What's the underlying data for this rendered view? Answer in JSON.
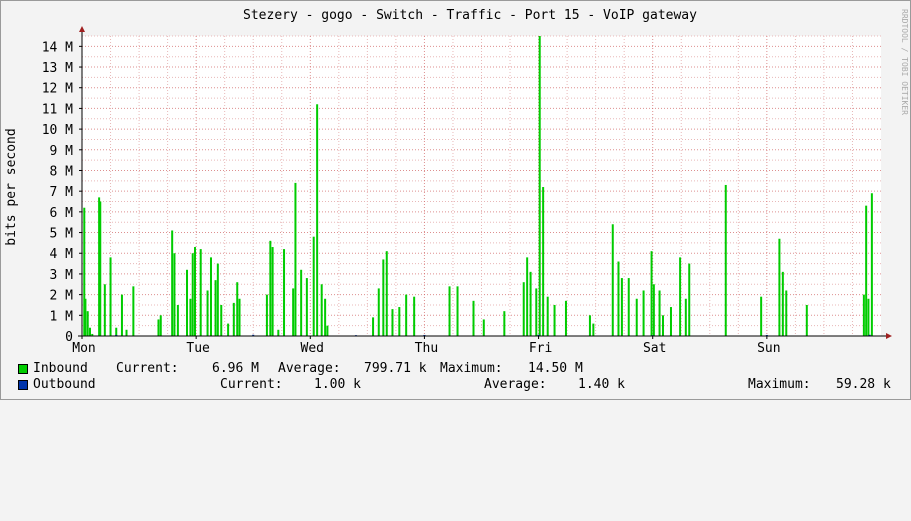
{
  "title": "Stezery - gogo - Switch - Traffic - Port 15 - VoIP gateway",
  "watermark": "RRDTOOL / TOBI OETIKER",
  "colors": {
    "background": "#f3f3f3",
    "plot": "#ffffff",
    "grid_minor": "#e8b8b8",
    "grid_major": "#d06060",
    "axis": "#000000",
    "arrow": "#a02020",
    "inbound": "#00cc00",
    "outbound": "#0033aa"
  },
  "chart_data": {
    "type": "area",
    "ylabel": "bits per second",
    "ylim": [
      0,
      14500000
    ],
    "y_ticks": [
      {
        "value": 0,
        "label": "0"
      },
      {
        "value": 1000000,
        "label": "1 M"
      },
      {
        "value": 2000000,
        "label": "2 M"
      },
      {
        "value": 3000000,
        "label": "3 M"
      },
      {
        "value": 4000000,
        "label": "4 M"
      },
      {
        "value": 5000000,
        "label": "5 M"
      },
      {
        "value": 6000000,
        "label": "6 M"
      },
      {
        "value": 7000000,
        "label": "7 M"
      },
      {
        "value": 8000000,
        "label": "8 M"
      },
      {
        "value": 9000000,
        "label": "9 M"
      },
      {
        "value": 10000000,
        "label": "10 M"
      },
      {
        "value": 11000000,
        "label": "11 M"
      },
      {
        "value": 12000000,
        "label": "12 M"
      },
      {
        "value": 13000000,
        "label": "13 M"
      },
      {
        "value": 14000000,
        "label": "14 M"
      }
    ],
    "x_range_days": [
      0,
      7
    ],
    "x_ticks": [
      {
        "day": 0,
        "label": "Mon"
      },
      {
        "day": 1,
        "label": "Tue"
      },
      {
        "day": 2,
        "label": "Wed"
      },
      {
        "day": 3,
        "label": "Thu"
      },
      {
        "day": 4,
        "label": "Fri"
      },
      {
        "day": 5,
        "label": "Sat"
      },
      {
        "day": 6,
        "label": "Sun"
      }
    ],
    "grid": true,
    "series": [
      {
        "name": "Inbound",
        "color": "#00cc00",
        "points": [
          [
            0.02,
            6.2
          ],
          [
            0.03,
            1.8
          ],
          [
            0.05,
            1.2
          ],
          [
            0.07,
            0.4
          ],
          [
            0.09,
            0.1
          ],
          [
            0.15,
            6.7
          ],
          [
            0.16,
            6.5
          ],
          [
            0.2,
            2.5
          ],
          [
            0.25,
            3.8
          ],
          [
            0.3,
            0.4
          ],
          [
            0.35,
            2.0
          ],
          [
            0.39,
            0.3
          ],
          [
            0.45,
            2.4
          ],
          [
            0.67,
            0.8
          ],
          [
            0.69,
            1.0
          ],
          [
            0.79,
            5.1
          ],
          [
            0.81,
            4.0
          ],
          [
            0.84,
            1.5
          ],
          [
            0.92,
            3.2
          ],
          [
            0.95,
            1.8
          ],
          [
            0.97,
            4.0
          ],
          [
            0.99,
            4.3
          ],
          [
            1.04,
            4.2
          ],
          [
            1.1,
            2.2
          ],
          [
            1.13,
            3.8
          ],
          [
            1.17,
            2.7
          ],
          [
            1.19,
            3.5
          ],
          [
            1.22,
            1.5
          ],
          [
            1.28,
            0.6
          ],
          [
            1.33,
            1.6
          ],
          [
            1.36,
            2.6
          ],
          [
            1.38,
            1.8
          ],
          [
            1.62,
            2.0
          ],
          [
            1.65,
            4.6
          ],
          [
            1.67,
            4.3
          ],
          [
            1.72,
            0.3
          ],
          [
            1.77,
            4.2
          ],
          [
            1.85,
            2.3
          ],
          [
            1.87,
            7.4
          ],
          [
            1.92,
            3.2
          ],
          [
            1.97,
            2.8
          ],
          [
            2.03,
            4.8
          ],
          [
            2.06,
            11.2
          ],
          [
            2.1,
            2.5
          ],
          [
            2.13,
            1.8
          ],
          [
            2.15,
            0.5
          ],
          [
            2.55,
            0.9
          ],
          [
            2.6,
            2.3
          ],
          [
            2.64,
            3.7
          ],
          [
            2.67,
            4.1
          ],
          [
            2.72,
            1.3
          ],
          [
            2.78,
            1.4
          ],
          [
            2.84,
            2.0
          ],
          [
            2.91,
            1.9
          ],
          [
            3.22,
            2.4
          ],
          [
            3.29,
            2.4
          ],
          [
            3.43,
            1.7
          ],
          [
            3.52,
            0.8
          ],
          [
            3.7,
            1.2
          ],
          [
            3.87,
            2.6
          ],
          [
            3.9,
            3.8
          ],
          [
            3.93,
            3.1
          ],
          [
            3.98,
            2.3
          ],
          [
            4.01,
            14.5
          ],
          [
            4.04,
            7.2
          ],
          [
            4.08,
            1.9
          ],
          [
            4.14,
            1.5
          ],
          [
            4.24,
            1.7
          ],
          [
            4.45,
            1.0
          ],
          [
            4.48,
            0.6
          ],
          [
            4.65,
            5.4
          ],
          [
            4.7,
            3.6
          ],
          [
            4.73,
            2.8
          ],
          [
            4.79,
            2.8
          ],
          [
            4.86,
            1.8
          ],
          [
            4.92,
            2.2
          ],
          [
            4.99,
            4.1
          ],
          [
            5.01,
            2.5
          ],
          [
            5.06,
            2.2
          ],
          [
            5.09,
            1.0
          ],
          [
            5.16,
            1.4
          ],
          [
            5.24,
            3.8
          ],
          [
            5.29,
            1.8
          ],
          [
            5.32,
            3.5
          ],
          [
            5.64,
            7.3
          ],
          [
            5.95,
            1.9
          ],
          [
            6.11,
            4.7
          ],
          [
            6.14,
            3.1
          ],
          [
            6.17,
            2.2
          ],
          [
            6.35,
            1.5
          ],
          [
            6.85,
            2.0
          ],
          [
            6.87,
            6.3
          ],
          [
            6.89,
            1.8
          ],
          [
            6.92,
            6.9
          ]
        ]
      },
      {
        "name": "Outbound",
        "color": "#0033aa",
        "points": [
          [
            0.3,
            0.05
          ],
          [
            1.5,
            0.06
          ],
          [
            2.4,
            0.04
          ],
          [
            3.0,
            0.05
          ],
          [
            4.0,
            0.06
          ],
          [
            5.0,
            0.04
          ],
          [
            6.0,
            0.05
          ],
          [
            6.9,
            0.06
          ]
        ]
      }
    ]
  },
  "legend": {
    "inbound": {
      "name": "Inbound",
      "current_label": "Current:",
      "current_value": "6.96 M",
      "average_label": "Average:",
      "average_value": "799.71 k",
      "maximum_label": "Maximum:",
      "maximum_value": "14.50 M"
    },
    "outbound": {
      "name": "Outbound",
      "current_label": "Current:",
      "current_value": "1.00 k",
      "average_label": "Average:",
      "average_value": "1.40 k",
      "maximum_label": "Maximum:",
      "maximum_value": "59.28 k"
    }
  }
}
